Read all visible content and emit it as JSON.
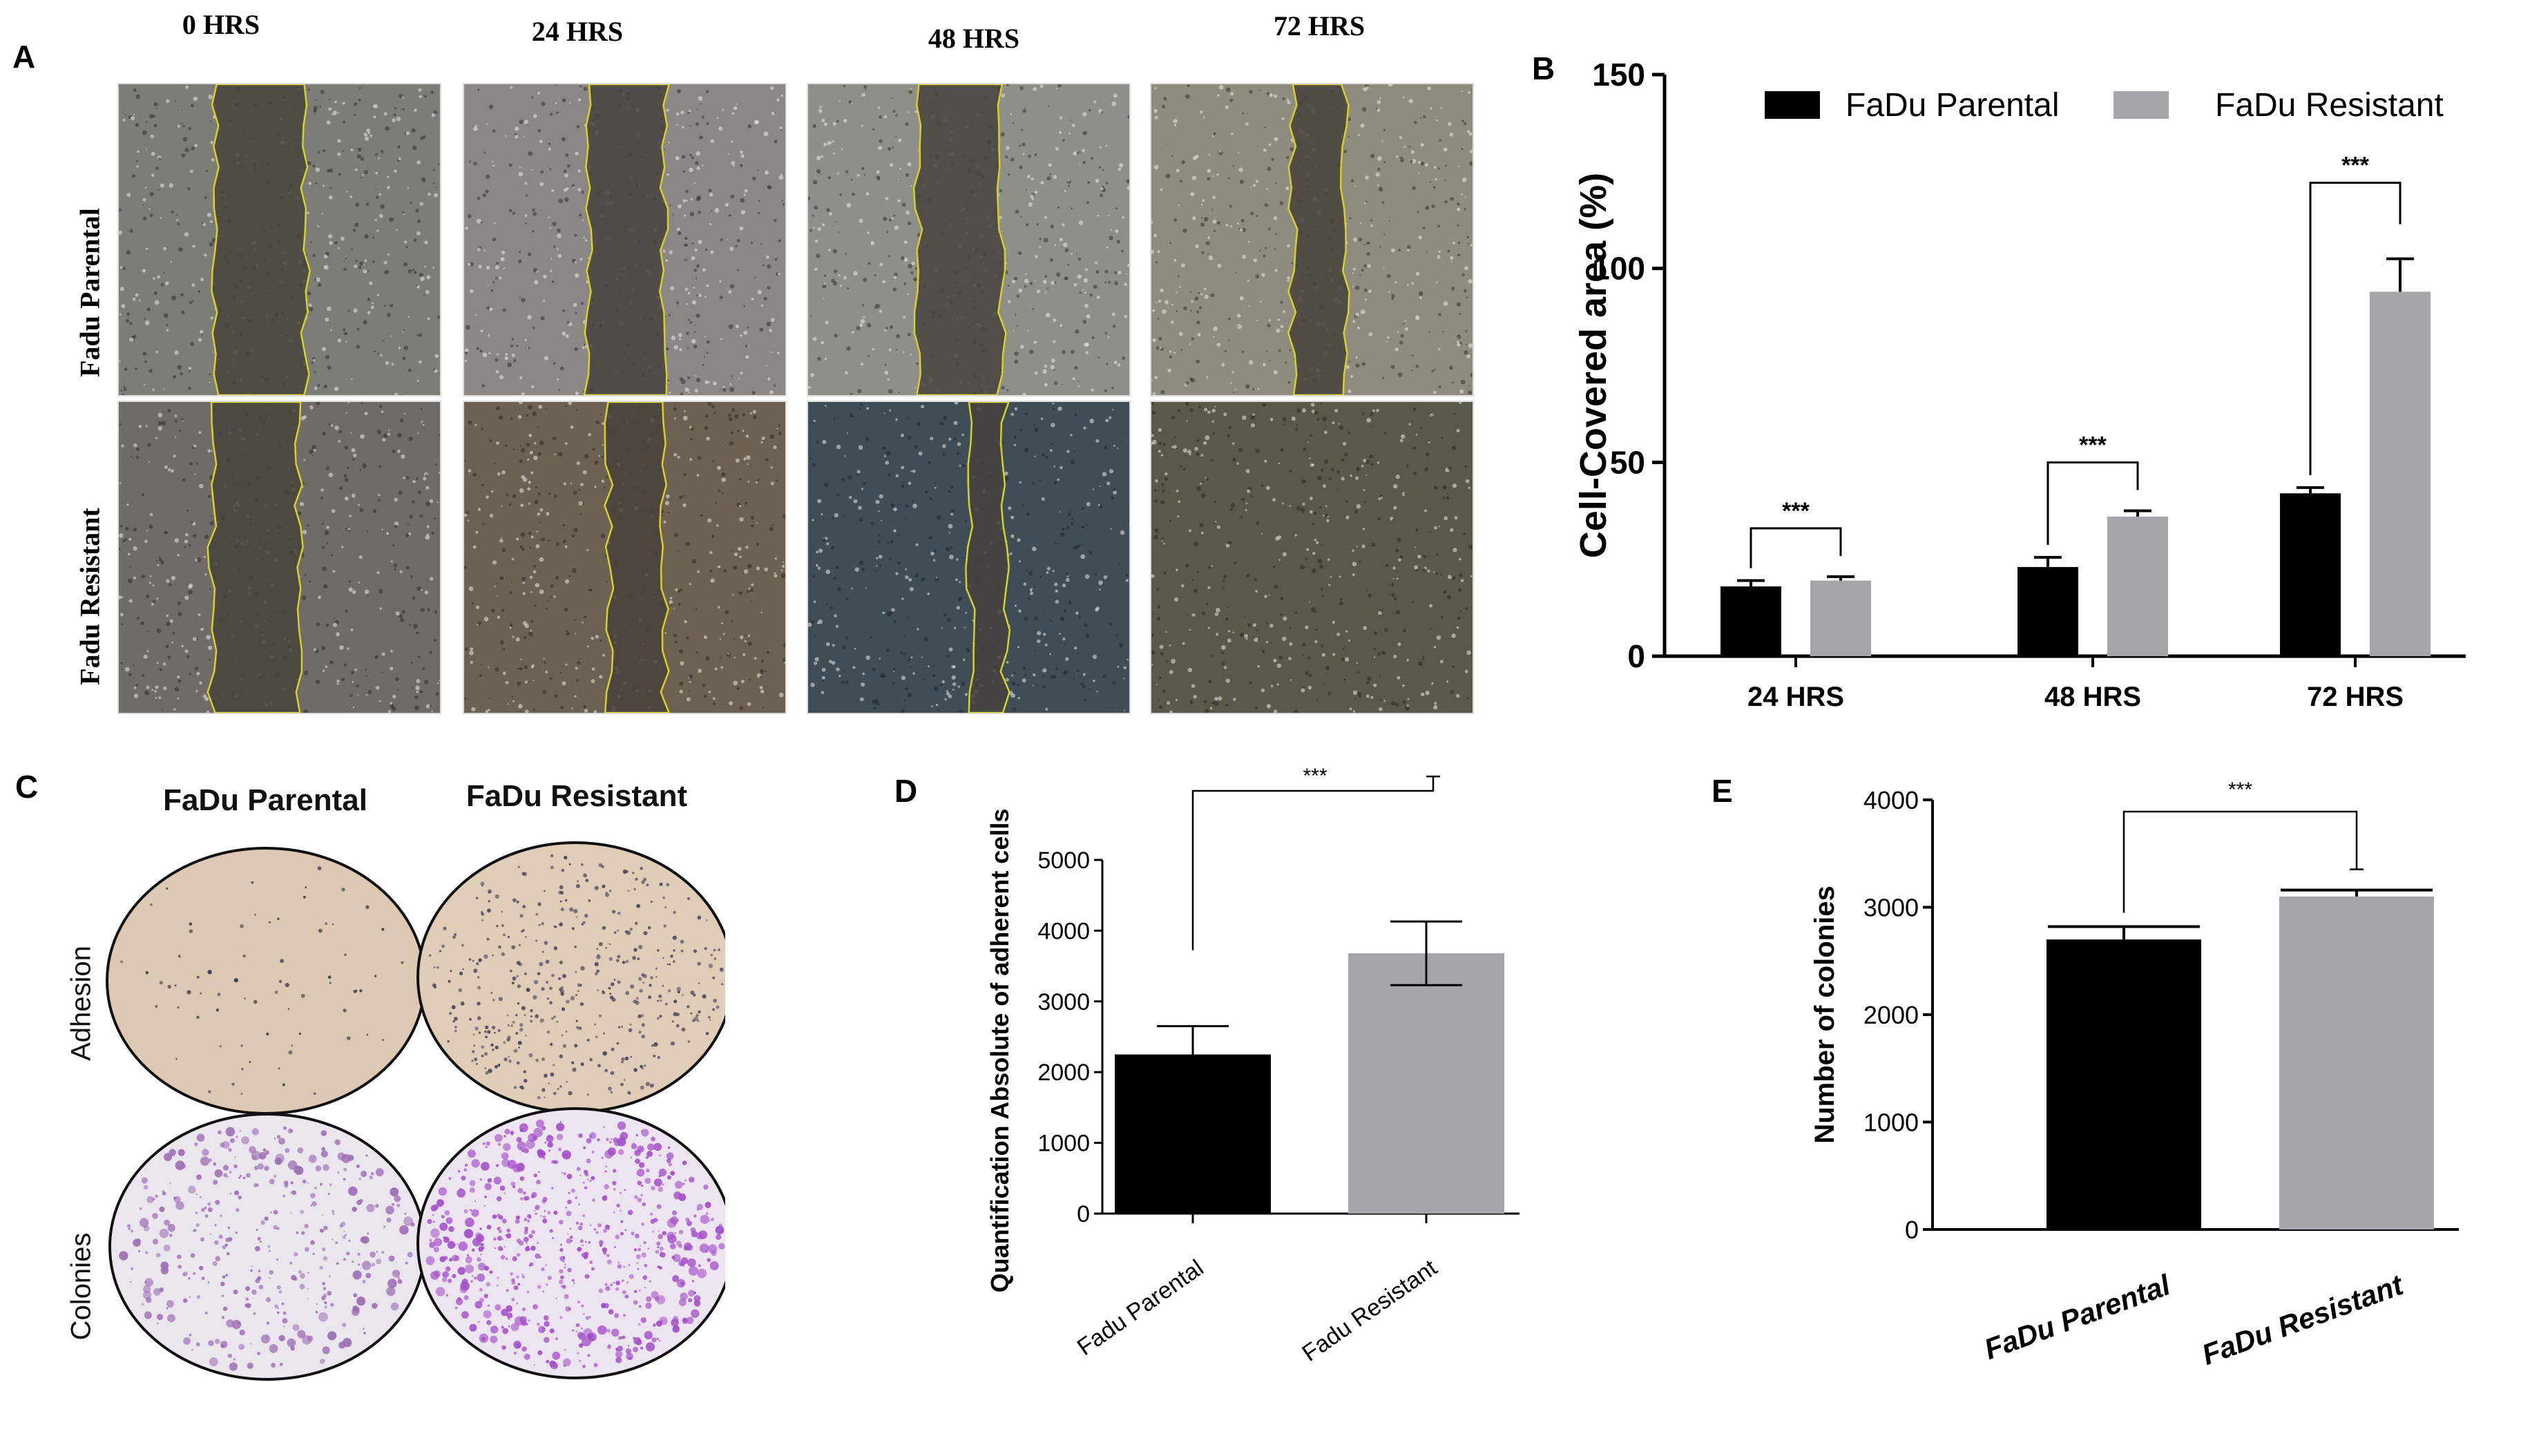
{
  "panels": {
    "A": {
      "letter": "A",
      "time_labels": [
        "0 HRS",
        "24 HRS",
        "48 HRS",
        "72 HRS"
      ],
      "row_labels": [
        "Fadu Parental",
        "Fadu Resistant"
      ]
    },
    "B": {
      "letter": "B"
    },
    "C": {
      "letter": "C",
      "col_headers": [
        "FaDu Parental",
        "FaDu Resistant"
      ],
      "row_labels": [
        "Adhesion",
        "Colonies"
      ]
    },
    "D": {
      "letter": "D"
    },
    "E": {
      "letter": "E"
    }
  },
  "colors": {
    "parental": "#000000",
    "resistant": "#a6a6aa"
  },
  "chart_data": [
    {
      "panel": "B",
      "type": "bar",
      "categories": [
        "24 HRS",
        "48 HRS",
        "72 HRS"
      ],
      "series": [
        {
          "name": "FaDu Parental",
          "values": [
            18,
            23,
            42
          ],
          "errors": [
            1.5,
            2.5,
            1.5
          ],
          "color": "#000000"
        },
        {
          "name": "FaDu Resistant",
          "values": [
            19.5,
            36,
            94
          ],
          "errors": [
            1,
            1.5,
            8.5
          ],
          "color": "#a6a6aa"
        }
      ],
      "xlabel": "",
      "ylabel": "Cell-Covered area (%)",
      "ylim": [
        0,
        150
      ],
      "yticks": [
        0,
        50,
        100,
        150
      ],
      "significance": [
        "***",
        "***",
        "***"
      ],
      "legend_position": "top"
    },
    {
      "panel": "D",
      "type": "bar",
      "categories": [
        "Fadu Parental",
        "Fadu Resistant"
      ],
      "values": [
        2250,
        3680
      ],
      "errors": [
        400,
        450
      ],
      "colors": [
        "#000000",
        "#a6a6aa"
      ],
      "xlabel": "",
      "ylabel": "Quantification Absolute of adherent cells",
      "ylim": [
        0,
        5000
      ],
      "yticks": [
        0,
        1000,
        2000,
        3000,
        4000,
        5000
      ],
      "significance": "***"
    },
    {
      "panel": "E",
      "type": "bar",
      "categories": [
        "FaDu Parental",
        "FaDu Resistant"
      ],
      "values": [
        2700,
        3100
      ],
      "errors": [
        120,
        60
      ],
      "colors": [
        "#000000",
        "#a6a6aa"
      ],
      "xlabel": "",
      "ylabel": "Number of colonies",
      "ylim": [
        0,
        4000
      ],
      "yticks": [
        0,
        1000,
        2000,
        3000,
        4000
      ],
      "significance": "***"
    }
  ]
}
